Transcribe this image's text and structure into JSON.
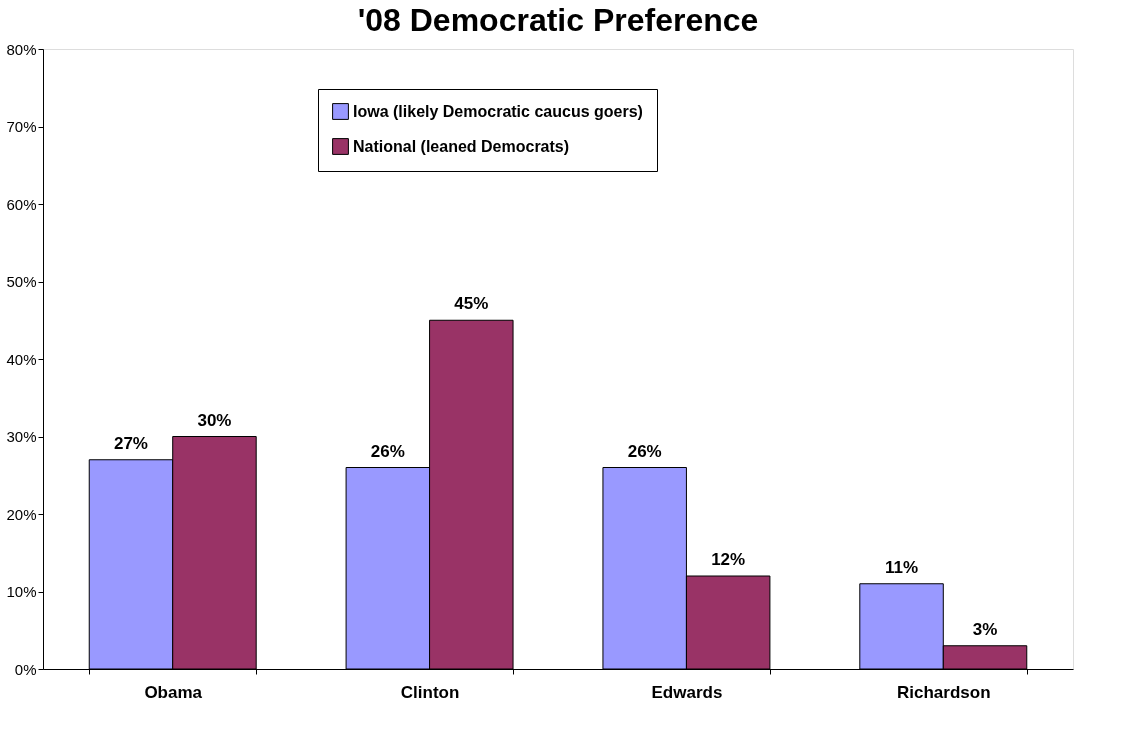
{
  "chart_data": {
    "type": "bar",
    "title": "'08 Democratic Preference",
    "categories": [
      "Obama",
      "Clinton",
      "Edwards",
      "Richardson"
    ],
    "series": [
      {
        "name": "Iowa (likely Democratic caucus goers)",
        "color": "#9999ff",
        "values": [
          27,
          26,
          26,
          11
        ],
        "value_labels": [
          "27%",
          "26%",
          "26%",
          "11%"
        ]
      },
      {
        "name": "National (leaned Democrats)",
        "color": "#993366",
        "values": [
          30,
          45,
          12,
          3
        ],
        "value_labels": [
          "30%",
          "45%",
          "12%",
          "3%"
        ]
      }
    ],
    "ylim": [
      0,
      80
    ],
    "yticks": [
      {
        "value": 0,
        "label": "0%"
      },
      {
        "value": 10,
        "label": "10%"
      },
      {
        "value": 20,
        "label": "20%"
      },
      {
        "value": 30,
        "label": "30%"
      },
      {
        "value": 40,
        "label": "40%"
      },
      {
        "value": 50,
        "label": "50%"
      },
      {
        "value": 60,
        "label": "60%"
      },
      {
        "value": 70,
        "label": "70%"
      },
      {
        "value": 80,
        "label": "80%"
      }
    ],
    "grid": false,
    "legend": "top"
  }
}
